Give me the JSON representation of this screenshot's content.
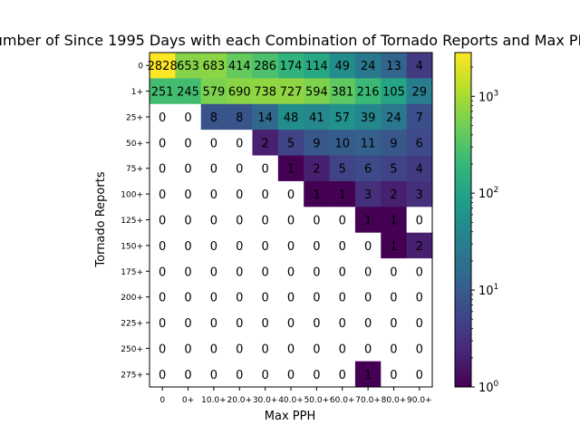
{
  "chart_data": {
    "type": "heatmap",
    "title": "Number of Since 1995 Days with each Combination of Tornado Reports and Max PPH",
    "xlabel": "Max PPH",
    "ylabel": "Tornado Reports",
    "x_categories": [
      "0",
      "0+",
      "10.0+",
      "20.0+",
      "30.0+",
      "40.0+",
      "50.0+",
      "60.0+",
      "70.0+",
      "80.0+",
      "90.0+"
    ],
    "y_categories": [
      "0",
      "1+",
      "25+",
      "50+",
      "75+",
      "100+",
      "125+",
      "150+",
      "175+",
      "200+",
      "225+",
      "250+",
      "275+"
    ],
    "values": [
      [
        2828,
        653,
        683,
        414,
        286,
        174,
        114,
        49,
        24,
        13,
        4
      ],
      [
        251,
        245,
        579,
        690,
        738,
        727,
        594,
        381,
        216,
        105,
        29
      ],
      [
        0,
        0,
        8,
        8,
        14,
        48,
        41,
        57,
        39,
        24,
        7
      ],
      [
        0,
        0,
        0,
        0,
        2,
        5,
        9,
        10,
        11,
        9,
        6
      ],
      [
        0,
        0,
        0,
        0,
        0,
        1,
        2,
        5,
        6,
        5,
        4
      ],
      [
        0,
        0,
        0,
        0,
        0,
        0,
        1,
        1,
        3,
        2,
        3
      ],
      [
        0,
        0,
        0,
        0,
        0,
        0,
        0,
        0,
        1,
        1,
        0
      ],
      [
        0,
        0,
        0,
        0,
        0,
        0,
        0,
        0,
        0,
        1,
        2
      ],
      [
        0,
        0,
        0,
        0,
        0,
        0,
        0,
        0,
        0,
        0,
        0
      ],
      [
        0,
        0,
        0,
        0,
        0,
        0,
        0,
        0,
        0,
        0,
        0
      ],
      [
        0,
        0,
        0,
        0,
        0,
        0,
        0,
        0,
        0,
        0,
        0
      ],
      [
        0,
        0,
        0,
        0,
        0,
        0,
        0,
        0,
        0,
        0,
        0
      ],
      [
        0,
        0,
        0,
        0,
        0,
        0,
        0,
        0,
        1,
        0,
        0
      ]
    ],
    "colorscale": "viridis",
    "color_scale_type": "log",
    "color_range": [
      1,
      2828
    ],
    "colorbar_ticks": [
      {
        "base": "10",
        "exp": "0",
        "value": 1
      },
      {
        "base": "10",
        "exp": "1",
        "value": 10
      },
      {
        "base": "10",
        "exp": "2",
        "value": 100
      },
      {
        "base": "10",
        "exp": "3",
        "value": 1000
      }
    ],
    "zero_cells_color": "#ffffff",
    "grid": false
  }
}
